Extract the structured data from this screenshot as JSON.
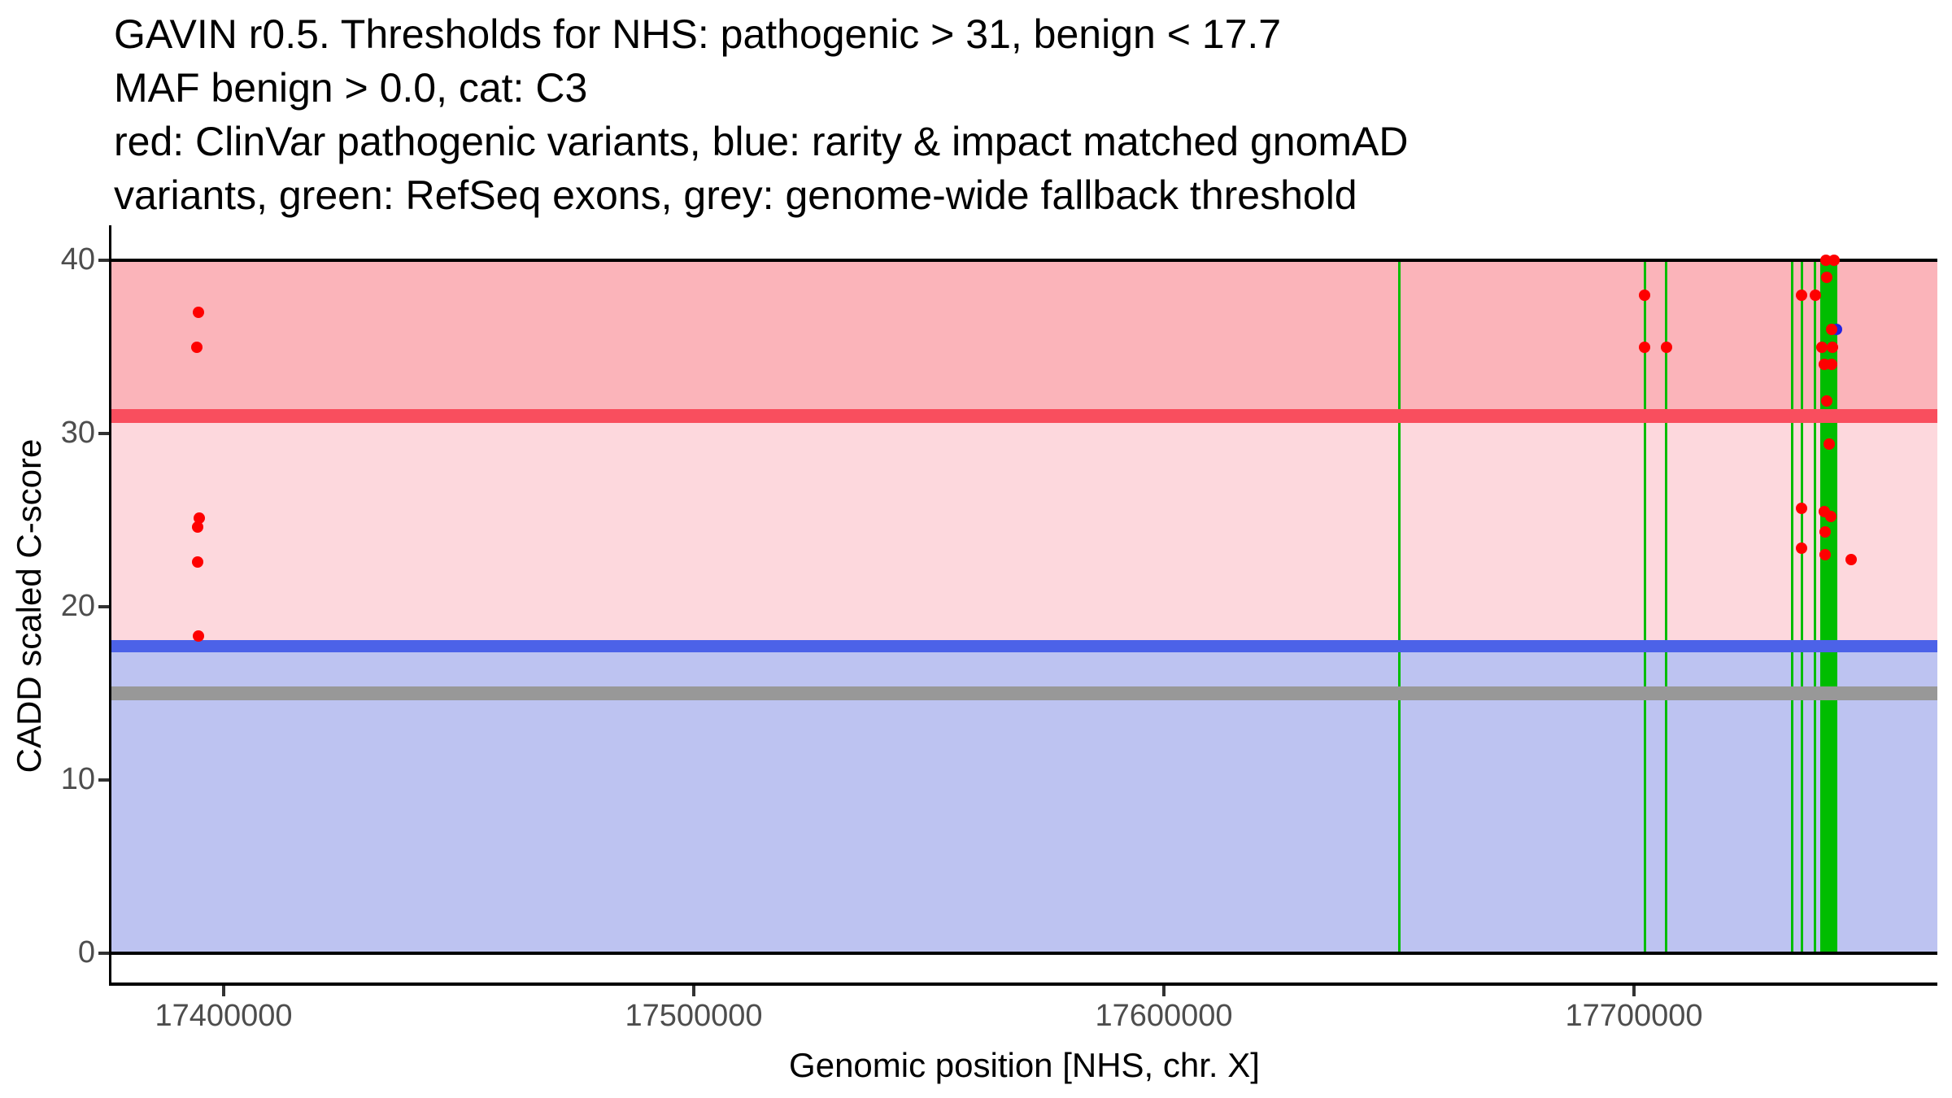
{
  "title_lines": [
    "GAVIN r0.5. Thresholds for NHS: pathogenic > 31, benign < 17.7",
    "MAF benign > 0.0, cat: C3",
    "red: ClinVar pathogenic variants, blue: rarity & impact matched gnomAD",
    "variants, green: RefSeq exons, grey: genome-wide fallback threshold"
  ],
  "axes": {
    "x": {
      "label": "Genomic position [NHS, chr. X]",
      "ticks": [
        {
          "value": 17400000,
          "label": "17400000"
        },
        {
          "value": 17500000,
          "label": "17500000"
        },
        {
          "value": 17600000,
          "label": "17600000"
        },
        {
          "value": 17700000,
          "label": "17700000"
        }
      ]
    },
    "y": {
      "label": "CADD scaled C-score",
      "ticks": [
        {
          "value": 0,
          "label": "0"
        },
        {
          "value": 10,
          "label": "10"
        },
        {
          "value": 20,
          "label": "20"
        },
        {
          "value": 30,
          "label": "30"
        },
        {
          "value": 40,
          "label": "40"
        }
      ]
    }
  },
  "chart_data": {
    "type": "scatter",
    "title": "GAVIN r0.5. Thresholds for NHS: pathogenic > 31, benign < 17.7\nMAF benign > 0.0, cat: C3\nred: ClinVar pathogenic variants, blue: rarity & impact matched gnomAD\nvariants, green: RefSeq exons, grey: genome-wide fallback threshold",
    "xlabel": "Genomic position [NHS, chr. X]",
    "ylabel": "CADD scaled C-score",
    "xlim": [
      17376200,
      17764600
    ],
    "ylim": [
      -2,
      42
    ],
    "x_ticks": [
      17400000,
      17500000,
      17600000,
      17700000
    ],
    "y_ticks": [
      0,
      10,
      20,
      30,
      40
    ],
    "grid": false,
    "legend_position": "none",
    "bands": [
      {
        "from": 31,
        "to": 40,
        "color": "#FBB4BA",
        "meaning": "pathogenic zone"
      },
      {
        "from": 17.7,
        "to": 31,
        "color": "#FDD8DD",
        "meaning": "uncertain zone"
      },
      {
        "from": 0,
        "to": 17.7,
        "color": "#BDC3F1",
        "meaning": "benign zone"
      }
    ],
    "thresholds": [
      {
        "name": "panel-top-line",
        "value": 40,
        "color": "#000000",
        "thickness": 4
      },
      {
        "name": "pathogenic-threshold",
        "value": 31,
        "color": "#F94E5E",
        "thickness": 17
      },
      {
        "name": "benign-threshold",
        "value": 17.7,
        "color": "#4C62E8",
        "thickness": 15
      },
      {
        "name": "genome-wide-fallback",
        "value": 15,
        "color": "#989898",
        "thickness": 17
      },
      {
        "name": "panel-bottom-line",
        "value": 0,
        "color": "#000000",
        "thickness": 4
      }
    ],
    "exons": {
      "color": "#00BD00",
      "lines": [
        17650000,
        17702300,
        17706900,
        17733600,
        17735650,
        17738550,
        17743050
      ],
      "blocks": [
        {
          "from": 17739600,
          "to": 17742700
        }
      ]
    },
    "series": [
      {
        "name": "ClinVar pathogenic variants",
        "color": "#FE0000",
        "points": [
          [
            17394600,
            37
          ],
          [
            17394300,
            35
          ],
          [
            17394800,
            25.1
          ],
          [
            17394500,
            24.6
          ],
          [
            17394500,
            22.6
          ],
          [
            17394600,
            18.3
          ],
          [
            17702300,
            38
          ],
          [
            17702300,
            35
          ],
          [
            17706900,
            35
          ],
          [
            17740800,
            40
          ],
          [
            17742500,
            40
          ],
          [
            17741000,
            39
          ],
          [
            17735650,
            38
          ],
          [
            17738550,
            38
          ],
          [
            17742000,
            36
          ],
          [
            17739900,
            35
          ],
          [
            17742300,
            35
          ],
          [
            17740400,
            34
          ],
          [
            17742100,
            34
          ],
          [
            17741000,
            31.9
          ],
          [
            17741500,
            29.4
          ],
          [
            17735650,
            25.7
          ],
          [
            17740500,
            25.5
          ],
          [
            17741900,
            25.2
          ],
          [
            17740700,
            24.3
          ],
          [
            17735650,
            23.4
          ],
          [
            17740700,
            23
          ],
          [
            17746200,
            22.7
          ]
        ]
      },
      {
        "name": "rarity & impact matched gnomAD variants",
        "color": "#2222E0",
        "points": [
          [
            17743100,
            36
          ]
        ]
      }
    ]
  }
}
